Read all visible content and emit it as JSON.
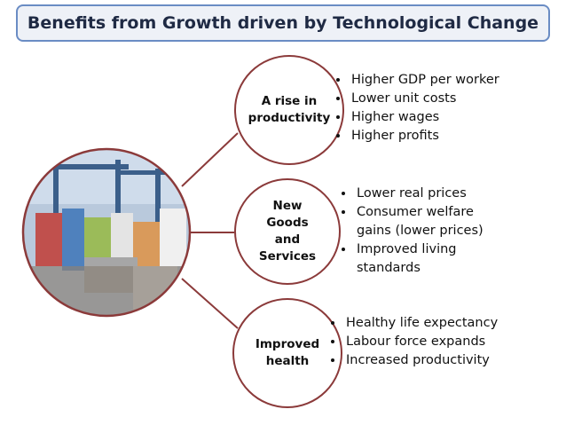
{
  "header": {
    "title": "Benefits from Growth driven by Technological Change"
  },
  "nodes": [
    {
      "label": [
        "A rise in",
        "productivity"
      ],
      "bullets": [
        "Higher GDP per worker",
        "Lower unit costs",
        "Higher wages",
        "Higher profits"
      ]
    },
    {
      "label": [
        "New",
        "Goods",
        "and",
        "Services"
      ],
      "bullets": [
        "Lower real prices",
        "Consumer welfare gains (lower prices)",
        "Improved living standards"
      ]
    },
    {
      "label": [
        "Improved",
        "health"
      ],
      "bullets": [
        "Healthy life expectancy",
        "Labour force expands",
        "Increased productivity"
      ]
    }
  ]
}
